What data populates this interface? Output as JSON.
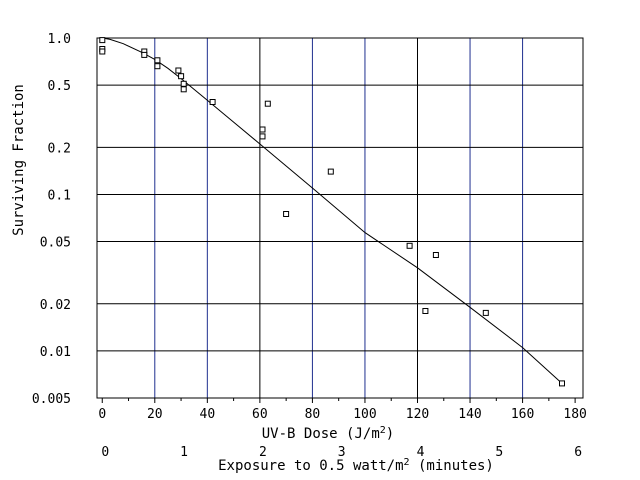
{
  "chart_data": {
    "type": "scatter",
    "title": "",
    "xlabel": "UV-B Dose (J/m",
    "xlabel_sup": "2",
    "xlabel_end": ")",
    "ylabel": "Surviving Fraction",
    "secondary_xlabel": "Exposure to 0.5 watt/m",
    "secondary_xlabel_sup": "2",
    "secondary_xlabel_end": " (minutes)",
    "y_scale": "log",
    "xlim": [
      -2,
      183
    ],
    "ylim": [
      0.005,
      1.0
    ],
    "grid": true,
    "x_ticks": [
      0,
      20,
      40,
      60,
      80,
      100,
      120,
      140,
      160,
      180
    ],
    "x_tick_labels": [
      "0",
      "20",
      "40",
      "60",
      "80",
      "100",
      "120",
      "140",
      "160",
      "180"
    ],
    "x_minor_ticks": [
      10,
      30,
      50,
      70,
      90,
      110,
      130,
      150,
      170
    ],
    "y_ticks": [
      1.0,
      0.5,
      0.2,
      0.1,
      0.05,
      0.02,
      0.01,
      0.005
    ],
    "y_tick_labels": [
      "1.0",
      "0.5",
      "0.2",
      "0.1",
      "0.05",
      "0.02",
      "0.01",
      "0.005"
    ],
    "secondary_x_ticks": [
      0,
      30,
      60,
      90,
      120,
      150,
      180
    ],
    "secondary_x_tick_labels": [
      "0",
      "1",
      "2",
      "3",
      "4",
      "5",
      "6"
    ],
    "vertical_grid_color": "#1f2f8f",
    "horizontal_grid_color": "#000000",
    "series": [
      {
        "marker": "square",
        "x": [
          0,
          0,
          0,
          16,
          16,
          21,
          21,
          29,
          30,
          31,
          31,
          42,
          61,
          61,
          63,
          70,
          87,
          117,
          123,
          127,
          146,
          175
        ],
        "y": [
          0.97,
          0.85,
          0.82,
          0.82,
          0.78,
          0.72,
          0.66,
          0.62,
          0.57,
          0.51,
          0.47,
          0.39,
          0.26,
          0.235,
          0.38,
          0.075,
          0.14,
          0.047,
          0.018,
          0.041,
          0.0175,
          0.0062
        ]
      },
      {
        "type": "line",
        "x": [
          0,
          3,
          8,
          15,
          20,
          25,
          30,
          40,
          50,
          60,
          80,
          100,
          120,
          140,
          160,
          175
        ],
        "y": [
          1.0,
          0.98,
          0.92,
          0.81,
          0.73,
          0.64,
          0.55,
          0.4,
          0.29,
          0.21,
          0.11,
          0.057,
          0.034,
          0.019,
          0.0105,
          0.0062
        ]
      }
    ]
  }
}
